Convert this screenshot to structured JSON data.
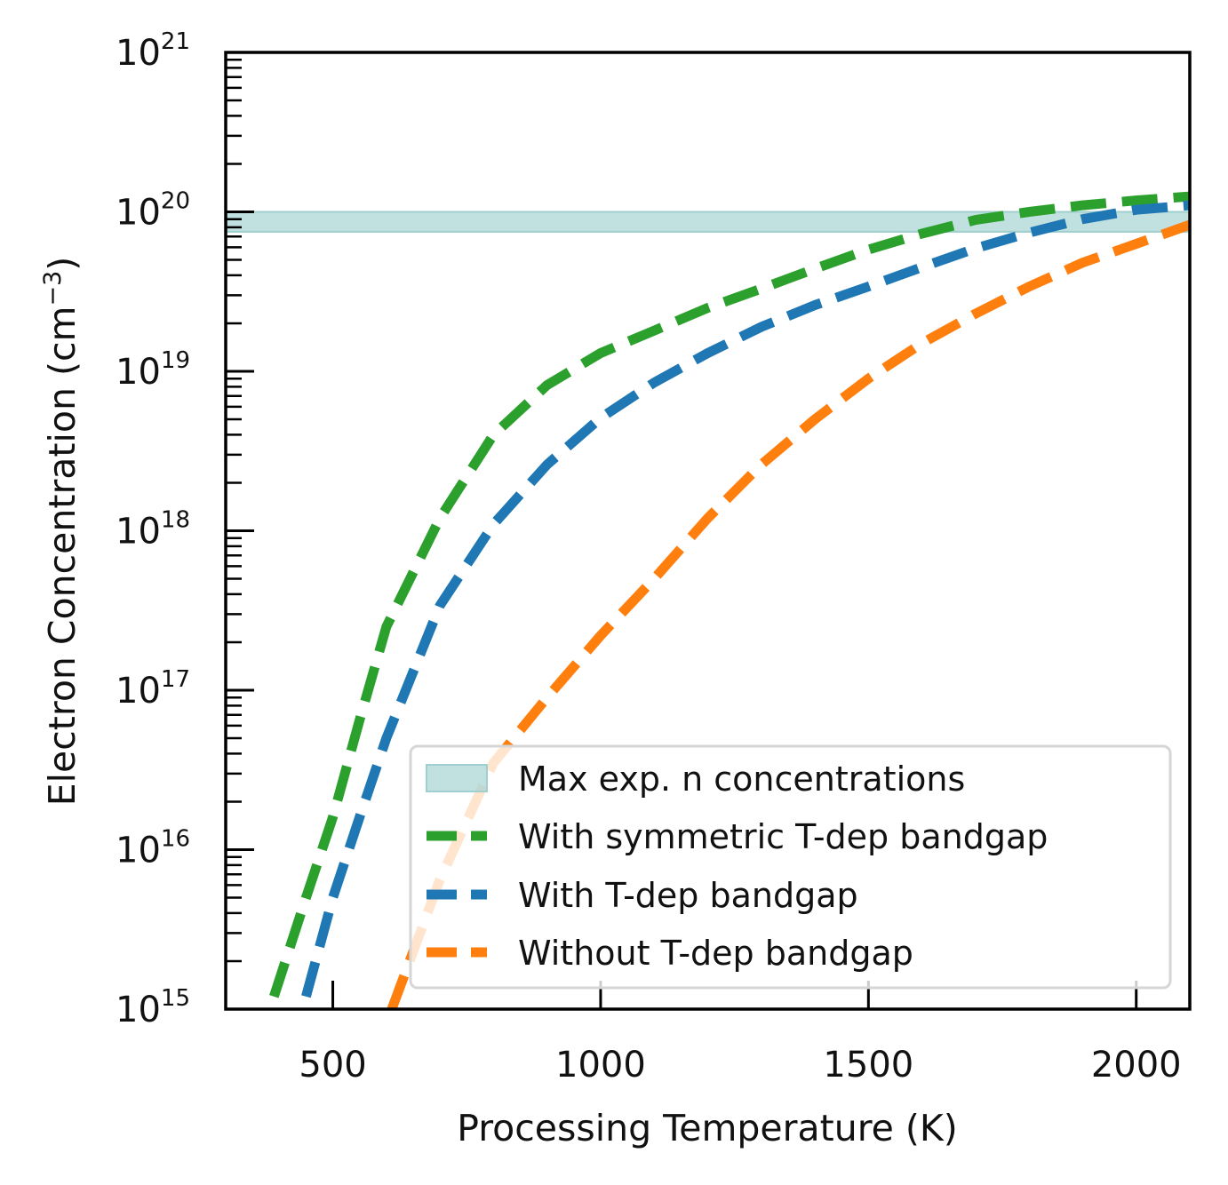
{
  "chart_data": {
    "type": "line",
    "xlabel": "Processing Temperature (K)",
    "ylabel": "Electron Concentration (cm",
    "ylabel_sup": "−3",
    "ylabel_suffix": ")",
    "xlim": [
      300,
      2100
    ],
    "ylim": [
      1000000000000000.0,
      1e+21
    ],
    "yscale": "log",
    "grid": false,
    "legend_position": "lower-right",
    "xticks": [
      {
        "value": 500,
        "label": "500"
      },
      {
        "value": 1000,
        "label": "1000"
      },
      {
        "value": 1500,
        "label": "1500"
      },
      {
        "value": 2000,
        "label": "2000"
      }
    ],
    "yticks": [
      {
        "value": 15,
        "base": "10",
        "exp": "15"
      },
      {
        "value": 16,
        "base": "10",
        "exp": "16"
      },
      {
        "value": 17,
        "base": "10",
        "exp": "17"
      },
      {
        "value": 18,
        "base": "10",
        "exp": "18"
      },
      {
        "value": 19,
        "base": "10",
        "exp": "19"
      },
      {
        "value": 20,
        "base": "10",
        "exp": "20"
      },
      {
        "value": 21,
        "base": "10",
        "exp": "21"
      }
    ],
    "band": {
      "name": "Max exp. n concentrations",
      "y_low": 7.5e+19,
      "y_high": 1e+20,
      "color": "#9fcfcf"
    },
    "series": [
      {
        "name": "With symmetric T-dep bandgap",
        "color": "#2ca02c",
        "style": "dashed",
        "x": [
          390,
          450,
          500,
          550,
          600,
          700,
          800,
          900,
          1000,
          1100,
          1200,
          1300,
          1400,
          1500,
          1600,
          1700,
          1800,
          1900,
          2000,
          2100
        ],
        "y": [
          1200000000000000.0,
          5000000000000000.0,
          1.6e+16,
          6.5e+16,
          2.5e+17,
          1.2e+18,
          4e+18,
          8.2e+18,
          1.3e+19,
          1.8e+19,
          2.5e+19,
          3.3e+19,
          4.4e+19,
          5.8e+19,
          7.3e+19,
          8.9e+19,
          1e+20,
          1.1e+20,
          1.18e+20,
          1.25e+20
        ]
      },
      {
        "name": "With T-dep bandgap",
        "color": "#1f77b4",
        "style": "dashed",
        "x": [
          450,
          500,
          550,
          600,
          700,
          800,
          900,
          1000,
          1100,
          1200,
          1300,
          1400,
          1500,
          1600,
          1700,
          1800,
          1900,
          2000,
          2100
        ],
        "y": [
          1200000000000000.0,
          5000000000000000.0,
          1.6e+16,
          5e+16,
          3.4e+17,
          1.1e+18,
          2.6e+18,
          5.1e+18,
          8.5e+18,
          1.3e+19,
          1.9e+19,
          2.6e+19,
          3.4e+19,
          4.5e+19,
          5.9e+19,
          7.4e+19,
          9e+19,
          1.03e+20,
          1.1e+20
        ]
      },
      {
        "name": "Without T-dep bandgap",
        "color": "#ff7f0e",
        "style": "dashed",
        "x": [
          610,
          700,
          800,
          900,
          1000,
          1100,
          1200,
          1300,
          1400,
          1500,
          1600,
          1700,
          1800,
          1900,
          2000,
          2100
        ],
        "y": [
          1000000000000000.0,
          6500000000000000.0,
          3.5e+16,
          9e+16,
          2.2e+17,
          5e+17,
          1.2e+18,
          2.6e+18,
          5e+18,
          9e+18,
          1.5e+19,
          2.3e+19,
          3.4e+19,
          4.8e+19,
          6.3e+19,
          8.3e+19
        ]
      }
    ]
  }
}
